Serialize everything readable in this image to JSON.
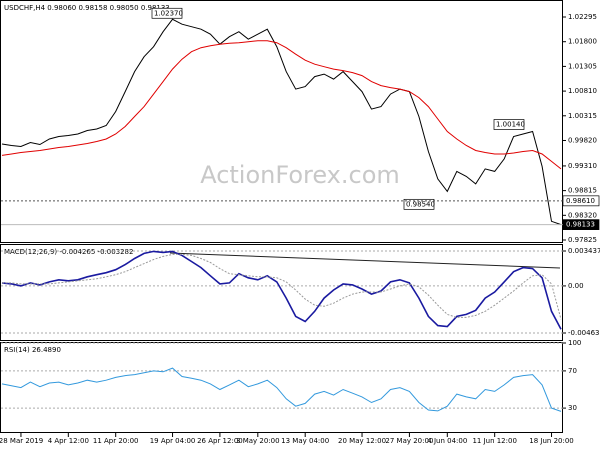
{
  "watermark": "ActionForex.com",
  "chart_data": [
    {
      "type": "line",
      "title": "USDCHF,H4 0.98060 0.98158 0.98050 0.98133",
      "ylim": [
        0.97785,
        1.02616
      ],
      "yticks": [
        1.02295,
        {
          "value": 1.018,
          "label": "1.01800"
        },
        1.01305,
        {
          "value": 1.0081,
          "label": "1.00810"
        },
        1.00315,
        {
          "value": 0.9982,
          "label": "0.99820"
        },
        {
          "value": 0.9931,
          "label": "0.99310"
        },
        0.98815,
        {
          "value": 0.9832,
          "label": "0.98320"
        },
        0.97825
      ],
      "series": [
        {
          "color": "#000000",
          "values": [
            0.9975,
            0.9972,
            0.997,
            0.9978,
            0.9974,
            0.9985,
            0.999,
            0.9992,
            0.9995,
            1.0002,
            1.0005,
            1.0012,
            1.004,
            1.008,
            1.012,
            1.015,
            1.017,
            1.02,
            1.0225,
            1.0215,
            1.021,
            1.0205,
            1.0195,
            1.0175,
            1.019,
            1.02,
            1.0185,
            1.0195,
            1.0205,
            1.017,
            1.012,
            1.0085,
            1.009,
            1.011,
            1.0115,
            1.0105,
            1.012,
            1.01,
            1.008,
            1.0045,
            1.005,
            1.0075,
            1.0085,
            1.008,
            1.003,
            0.996,
            0.9905,
            0.988,
            0.992,
            0.991,
            0.9895,
            0.9925,
            0.992,
            0.9945,
            0.999,
            0.9995,
            1.0,
            0.993,
            0.982,
            0.98133
          ]
        },
        {
          "color": "#e00000",
          "values": [
            0.9952,
            0.9955,
            0.9958,
            0.996,
            0.9962,
            0.9965,
            0.9968,
            0.997,
            0.9973,
            0.9976,
            0.998,
            0.9985,
            0.9995,
            1.001,
            1.003,
            1.005,
            1.0075,
            1.01,
            1.0125,
            1.0145,
            1.016,
            1.0168,
            1.0172,
            1.0175,
            1.0177,
            1.0178,
            1.018,
            1.0182,
            1.0182,
            1.0178,
            1.0168,
            1.0155,
            1.0143,
            1.0135,
            1.013,
            1.0125,
            1.0122,
            1.0118,
            1.0112,
            1.01,
            1.0092,
            1.0088,
            1.0085,
            1.008,
            1.0068,
            1.005,
            1.0025,
            1.0,
            0.9985,
            0.9972,
            0.9962,
            0.9958,
            0.9955,
            0.9955,
            0.9957,
            0.996,
            0.9962,
            0.9955,
            0.994,
            0.9925
          ]
        }
      ],
      "annotations": [
        {
          "value": 1.0237,
          "label": "1.02370"
        },
        {
          "value": 1.0014,
          "label": "1.00140"
        },
        {
          "value": 0.9854,
          "label": "0.98540"
        }
      ],
      "levels": [
        {
          "value": 0.9861,
          "label": "0.98610"
        },
        {
          "value": 0.98133,
          "label": "0.98133"
        }
      ]
    },
    {
      "type": "line",
      "title": "MACD(12,26,9) -0.004265 -0.003282",
      "ylim": [
        -0.00532,
        0.004026
      ],
      "yticks": [
        0.003437,
        {
          "value": 0,
          "label": "0.00"
        },
        -0.004632
      ],
      "grid": true,
      "series": [
        {
          "color": "#1a1aa0",
          "values": [
            0.0003,
            0.0002,
            0.0,
            0.0003,
            0.0001,
            0.0004,
            0.0006,
            0.0005,
            0.0006,
            0.0009,
            0.0011,
            0.0013,
            0.0016,
            0.0021,
            0.0027,
            0.0032,
            0.0034,
            0.0033,
            0.0034,
            0.003,
            0.0024,
            0.0018,
            0.001,
            0.0002,
            0.0003,
            0.0012,
            0.0008,
            0.0006,
            0.001,
            0.0004,
            -0.0012,
            -0.003,
            -0.0035,
            -0.0025,
            -0.0012,
            -0.0004,
            0.0002,
            0.0001,
            -0.0003,
            -0.0008,
            -0.0005,
            0.0004,
            0.0006,
            0.0003,
            -0.0012,
            -0.003,
            -0.0039,
            -0.004,
            -0.003,
            -0.0028,
            -0.0024,
            -0.0012,
            -0.0006,
            0.0004,
            0.0014,
            0.0018,
            0.0017,
            0.0008,
            -0.0025,
            -0.004265
          ]
        },
        {
          "color": "#999999",
          "values": [
            0.0003,
            0.0003,
            0.0002,
            0.0002,
            0.0002,
            0.0002,
            0.0003,
            0.0004,
            0.0005,
            0.0006,
            0.0007,
            0.0009,
            0.0011,
            0.0014,
            0.0018,
            0.0022,
            0.0026,
            0.0029,
            0.0031,
            0.0031,
            0.003,
            0.0027,
            0.0023,
            0.0017,
            0.0012,
            0.0011,
            0.001,
            0.0009,
            0.0009,
            0.0008,
            0.0004,
            -0.0004,
            -0.0013,
            -0.0019,
            -0.002,
            -0.0017,
            -0.0012,
            -0.0008,
            -0.0006,
            -0.0006,
            -0.0006,
            -0.0003,
            0.0,
            0.0002,
            -0.0001,
            -0.0009,
            -0.0019,
            -0.0028,
            -0.0031,
            -0.0031,
            -0.0029,
            -0.0025,
            -0.0019,
            -0.0012,
            -0.0005,
            0.0003,
            0.001,
            0.0011,
            0.0002,
            -0.003282
          ]
        }
      ]
    },
    {
      "type": "line",
      "title": "RSI(14) 26.4890",
      "ylim": [
        0,
        100
      ],
      "yticks": [
        100,
        70,
        30
      ],
      "grid": true,
      "categories": [
        null,
        null,
        "28 Mar 2019",
        null,
        null,
        null,
        null,
        "4 Apr 12:00",
        null,
        null,
        null,
        null,
        "11 Apr 20:00",
        null,
        null,
        null,
        null,
        null,
        "19 Apr 04:00",
        null,
        null,
        null,
        null,
        "26 Apr 12:00",
        null,
        null,
        null,
        "3 May 20:00",
        null,
        null,
        null,
        null,
        "13 May 04:00",
        null,
        null,
        null,
        null,
        null,
        "20 May 12:00",
        null,
        null,
        null,
        null,
        "27 May 20:00",
        null,
        null,
        null,
        "4 Jun 04:00",
        null,
        null,
        null,
        null,
        "11 Jun 12:00",
        null,
        null,
        null,
        null,
        null,
        "18 Jun 20:00",
        null
      ],
      "series": [
        {
          "color": "#3399dd",
          "values": [
            56,
            54,
            52,
            58,
            53,
            57,
            58,
            55,
            57,
            60,
            58,
            60,
            63,
            65,
            66,
            68,
            70,
            69,
            73,
            64,
            62,
            60,
            56,
            50,
            55,
            60,
            53,
            56,
            60,
            52,
            40,
            32,
            35,
            45,
            48,
            44,
            50,
            46,
            42,
            36,
            40,
            50,
            52,
            48,
            36,
            28,
            27,
            32,
            45,
            42,
            40,
            50,
            48,
            55,
            63,
            65,
            66,
            55,
            30,
            26.489
          ]
        }
      ]
    }
  ]
}
